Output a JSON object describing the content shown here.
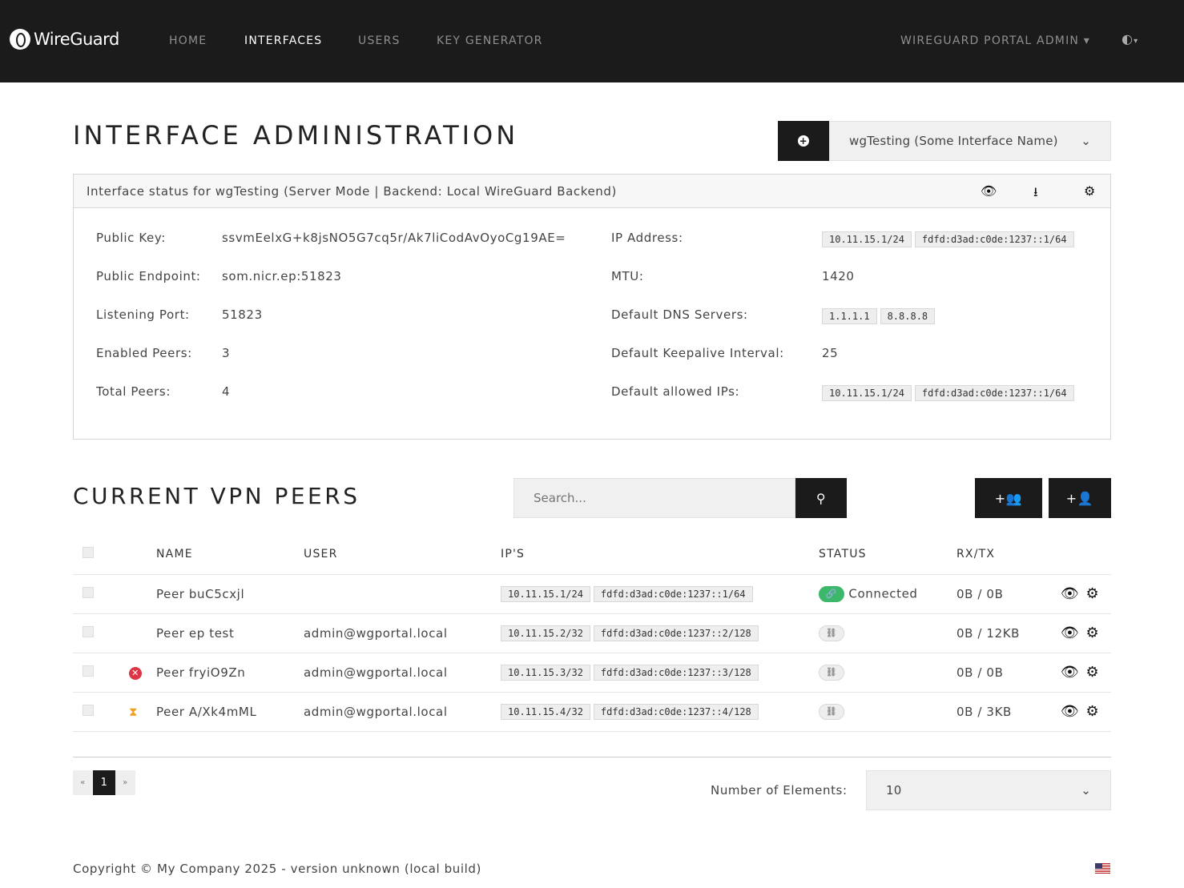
{
  "nav": {
    "brand": "WireGuard",
    "items": [
      {
        "label": "HOME",
        "active": false
      },
      {
        "label": "INTERFACES",
        "active": true
      },
      {
        "label": "USERS",
        "active": false
      },
      {
        "label": "KEY GENERATOR",
        "active": false
      }
    ],
    "user_menu": "WIREGUARD PORTAL ADMIN",
    "theme_icon": "half-circle-icon"
  },
  "page": {
    "title": "INTERFACE ADMINISTRATION",
    "interface_select": "wgTesting (Some Interface Name)"
  },
  "status": {
    "header": "Interface status for wgTesting (Server Mode | Backend: Local WireGuard Backend)",
    "left": [
      {
        "label": "Public Key:",
        "value": "ssvmEelxG+k8jsNO5G7cq5r/Ak7liCodAvOyoCg19AE="
      },
      {
        "label": "Public Endpoint:",
        "value": "som.nicr.ep:51823"
      },
      {
        "label": "Listening Port:",
        "value": "51823"
      },
      {
        "label": "Enabled Peers:",
        "value": "3"
      },
      {
        "label": "Total Peers:",
        "value": "4"
      }
    ],
    "right": [
      {
        "label": "IP Address:",
        "badges": [
          "10.11.15.1/24",
          "fdfd:d3ad:c0de:1237::1/64"
        ]
      },
      {
        "label": "MTU:",
        "value": "1420"
      },
      {
        "label": "Default DNS Servers:",
        "badges": [
          "1.1.1.1",
          "8.8.8.8"
        ]
      },
      {
        "label": "Default Keepalive Interval:",
        "value": "25"
      },
      {
        "label": "Default allowed IPs:",
        "badges": [
          "10.11.15.1/24",
          "fdfd:d3ad:c0de:1237::1/64"
        ]
      }
    ]
  },
  "peers": {
    "title": "CURRENT VPN PEERS",
    "search_placeholder": "Search...",
    "columns": [
      "NAME",
      "USER",
      "IP'S",
      "STATUS",
      "RX/TX"
    ],
    "rows": [
      {
        "icon": "",
        "name": "Peer buC5cxjl",
        "user": "",
        "ips": [
          "10.11.15.1/24",
          "fdfd:d3ad:c0de:1237::1/64"
        ],
        "connected": true,
        "status": "Connected",
        "rxtx": "0B / 0B"
      },
      {
        "icon": "",
        "name": "Peer ep test",
        "user": "admin@wgportal.local",
        "ips": [
          "10.11.15.2/32",
          "fdfd:d3ad:c0de:1237::2/128"
        ],
        "connected": false,
        "status": "",
        "rxtx": "0B / 12KB"
      },
      {
        "icon": "disabled-icon",
        "name": "Peer fryiO9Zn",
        "user": "admin@wgportal.local",
        "ips": [
          "10.11.15.3/32",
          "fdfd:d3ad:c0de:1237::3/128"
        ],
        "connected": false,
        "status": "",
        "rxtx": "0B / 0B"
      },
      {
        "icon": "hourglass-icon",
        "name": "Peer A/Xk4mML",
        "user": "admin@wgportal.local",
        "ips": [
          "10.11.15.4/32",
          "fdfd:d3ad:c0de:1237::4/128"
        ],
        "connected": false,
        "status": "",
        "rxtx": "0B / 3KB"
      }
    ]
  },
  "pagination": {
    "prev": "«",
    "current": "1",
    "next": "»",
    "elements_label": "Number of Elements:",
    "elements_value": "10"
  },
  "footer": {
    "copyright": "Copyright © My Company 2025 - version unknown (local build)"
  },
  "colors": {
    "nav_bg": "#1b1b1b",
    "connected": "#3cb86a",
    "disabled": "#dc3545",
    "pending": "#f0a020"
  }
}
